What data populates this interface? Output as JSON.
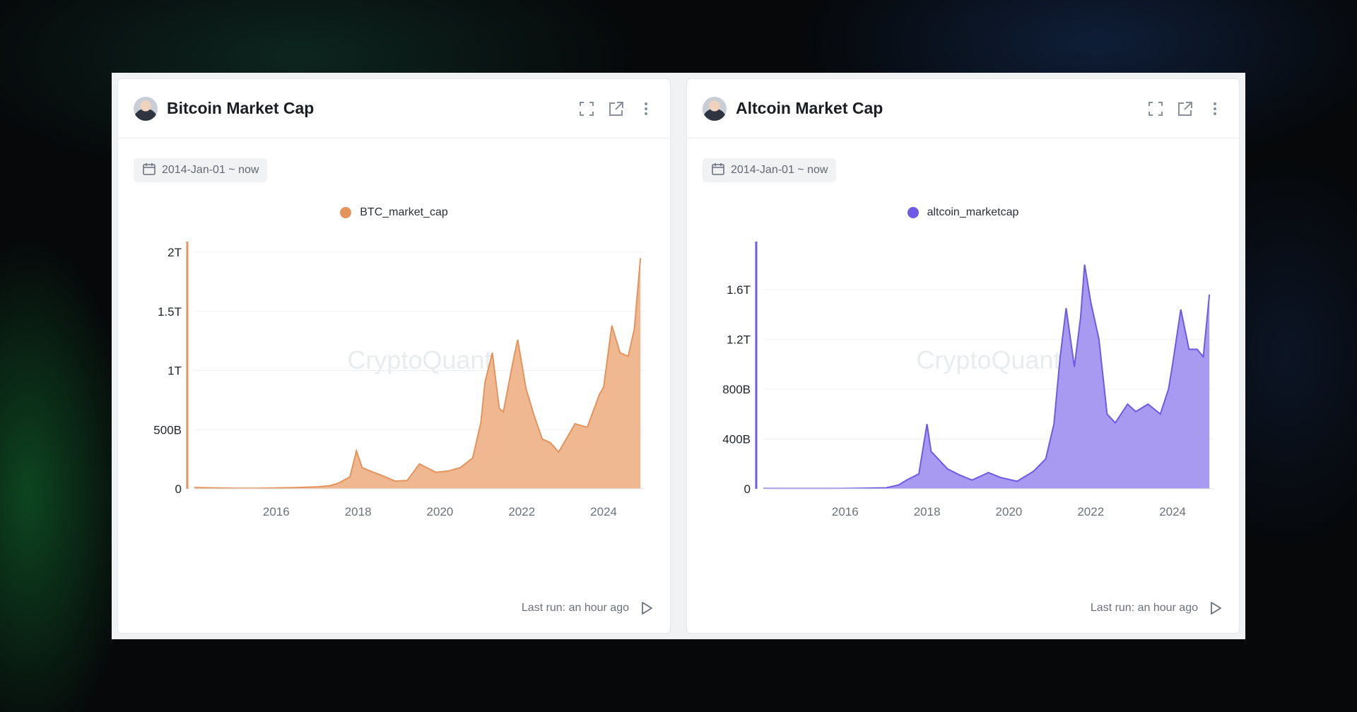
{
  "cards": [
    {
      "title": "Bitcoin Market Cap",
      "date_range": "2014-Jan-01 ~ now",
      "footer": "Last run: an hour ago",
      "watermark": "CryptoQuant",
      "color": "#e5935c",
      "fill": "#efb48b"
    },
    {
      "title": "Altcoin Market Cap",
      "date_range": "2014-Jan-01 ~ now",
      "footer": "Last run: an hour ago",
      "watermark": "CryptoQuant",
      "color": "#6f5ae6",
      "fill": "#a394f0"
    }
  ],
  "icons": [
    "avatar",
    "expand-icon",
    "external-link-icon",
    "more-vertical-icon",
    "calendar-icon",
    "play-icon"
  ],
  "chart_data": [
    {
      "type": "area",
      "series": [
        {
          "name": "BTC_market_cap",
          "x": [
            2014.0,
            2014.5,
            2015.0,
            2015.5,
            2016.0,
            2016.5,
            2017.0,
            2017.3,
            2017.5,
            2017.8,
            2017.96,
            2018.1,
            2018.3,
            2018.6,
            2018.9,
            2019.2,
            2019.5,
            2019.9,
            2020.2,
            2020.5,
            2020.8,
            2021.0,
            2021.1,
            2021.28,
            2021.45,
            2021.55,
            2021.8,
            2021.9,
            2022.1,
            2022.3,
            2022.5,
            2022.7,
            2022.9,
            2023.1,
            2023.3,
            2023.6,
            2023.9,
            2024.0,
            2024.2,
            2024.4,
            2024.6,
            2024.75,
            2024.9
          ],
          "y": [
            10,
            8,
            4,
            4,
            7,
            10,
            16,
            25,
            45,
            100,
            320,
            180,
            150,
            110,
            65,
            70,
            210,
            140,
            150,
            180,
            260,
            560,
            900,
            1150,
            680,
            650,
            1100,
            1260,
            850,
            620,
            420,
            390,
            310,
            430,
            550,
            520,
            800,
            860,
            1380,
            1150,
            1120,
            1350,
            1950
          ]
        }
      ],
      "xlim": [
        2014.0,
        2025.0
      ],
      "ylim": [
        0,
        2000
      ],
      "xticks": [
        "2016",
        "2018",
        "2020",
        "2022",
        "2024"
      ],
      "yticks": [
        "0",
        "500B",
        "1T",
        "1.5T",
        "2T"
      ],
      "legend": "top-center"
    },
    {
      "type": "area",
      "series": [
        {
          "name": "altcoin_marketcap",
          "x": [
            2014.0,
            2014.5,
            2015.0,
            2015.5,
            2016.0,
            2016.5,
            2017.0,
            2017.3,
            2017.5,
            2017.8,
            2018.0,
            2018.1,
            2018.3,
            2018.5,
            2018.8,
            2019.1,
            2019.5,
            2019.8,
            2020.2,
            2020.6,
            2020.9,
            2021.1,
            2021.25,
            2021.4,
            2021.6,
            2021.75,
            2021.85,
            2022.0,
            2022.2,
            2022.4,
            2022.6,
            2022.9,
            2023.1,
            2023.4,
            2023.7,
            2023.9,
            2024.0,
            2024.2,
            2024.4,
            2024.6,
            2024.75,
            2024.9
          ],
          "y": [
            3,
            2,
            2,
            2,
            3,
            5,
            8,
            30,
            70,
            120,
            520,
            300,
            230,
            160,
            110,
            70,
            130,
            90,
            60,
            140,
            240,
            520,
            1050,
            1450,
            980,
            1370,
            1800,
            1500,
            1200,
            600,
            530,
            680,
            620,
            680,
            600,
            800,
            1000,
            1440,
            1120,
            1120,
            1060,
            1560
          ]
        }
      ],
      "xlim": [
        2014.0,
        2025.0
      ],
      "ylim": [
        0,
        1900
      ],
      "xticks": [
        "2016",
        "2018",
        "2020",
        "2022",
        "2024"
      ],
      "yticks": [
        "0",
        "400B",
        "800B",
        "1.2T",
        "1.6T"
      ],
      "legend": "top-center"
    }
  ]
}
